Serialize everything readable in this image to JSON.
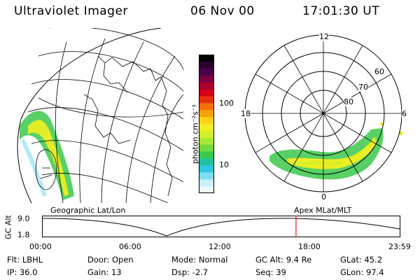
{
  "header": {
    "instrument": "Ultraviolet Imager",
    "date": "06 Nov 00",
    "time": "17:01:30 UT"
  },
  "colorbar": {
    "unit_label": "photon cm⁻²s⁻¹",
    "ticks": [
      "100",
      "10"
    ],
    "colors": [
      "#000000",
      "#2a0030",
      "#4a0048",
      "#7a0040",
      "#a8002a",
      "#d0001a",
      "#e8300a",
      "#f27008",
      "#f8a00a",
      "#ffd21a",
      "#f2ef20",
      "#d4f02a",
      "#a8e835",
      "#70d840",
      "#3cc84a",
      "#20c0a0",
      "#30c8e0",
      "#80dcf0",
      "#c8eef8",
      "#eef6fa"
    ]
  },
  "polar_plot": {
    "clock_labels": [
      "12",
      "18",
      "6",
      "0"
    ],
    "lat_labels": [
      "60",
      "70",
      "80"
    ]
  },
  "timeline": {
    "left_title": "Geographic Lat/Lon",
    "right_title": "Apex MLat/MLT",
    "axis_label": "GC Alt",
    "y_ticks": [
      "9.0",
      "1.8"
    ],
    "x_ticks": [
      "00:00",
      "06:00",
      "12:00",
      "18:00",
      "23:59"
    ],
    "marker_time": "17:01",
    "marker_color": "#e02020"
  },
  "info": {
    "row1": {
      "flt": "Flt: LBHL",
      "door": "Door: Open",
      "mode": "Mode: Normal",
      "gc_alt": "GC Alt: 9.4 Re",
      "glat": "GLat:  45.2"
    },
    "row2": {
      "ip": "IP: 36.0",
      "gain": "Gain: 13",
      "dsp": "Dsp:    -2.7",
      "seq": "Seq: 39",
      "glon": "GLon:  97.4"
    }
  }
}
